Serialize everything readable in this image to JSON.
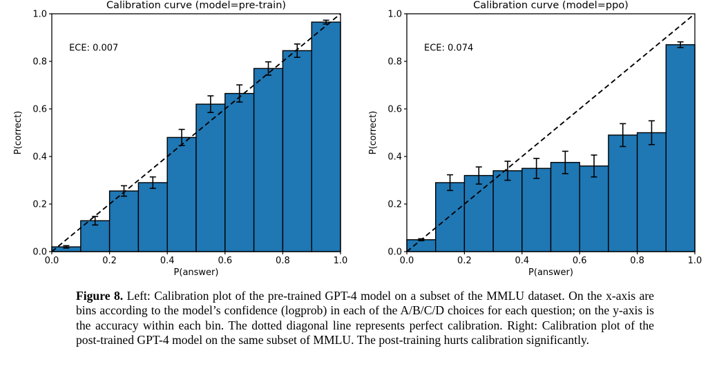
{
  "figure": {
    "caption_label": "Figure 8.",
    "caption_text": " Left: Calibration plot of the pre-trained GPT-4 model on a subset of the MMLU dataset. On the x-axis are bins according to the model’s confidence (logprob) in each of the A/B/C/D choices for each question; on the y-axis is the accuracy within each bin. The dotted diagonal line represents perfect calibration. Right: Calibration plot of the post-trained GPT-4 model on the same subset of MMLU. The post-training hurts calibration significantly."
  },
  "chart_data": [
    {
      "type": "bar",
      "title": "Calibration curve (model=pre-train)",
      "annotation": "ECE: 0.007",
      "xlabel": "P(answer)",
      "ylabel": "P(correct)",
      "xlim": [
        0.0,
        1.0
      ],
      "ylim": [
        0.0,
        1.0
      ],
      "grid": false,
      "diagonal_line": true,
      "xticks": {
        "values": [
          0.0,
          0.2,
          0.4,
          0.6,
          0.8,
          1.0
        ],
        "labels": [
          "0.0",
          "0.2",
          "0.4",
          "0.6",
          "0.8",
          "1.0"
        ]
      },
      "yticks": {
        "values": [
          0.0,
          0.2,
          0.4,
          0.6,
          0.8,
          1.0
        ],
        "labels": [
          "0.0",
          "0.2",
          "0.4",
          "0.6",
          "0.8",
          "1.0"
        ]
      },
      "bin_edges": [
        0.0,
        0.1,
        0.2,
        0.3,
        0.4,
        0.5,
        0.6,
        0.7,
        0.8,
        0.9,
        1.0
      ],
      "values": [
        0.02,
        0.13,
        0.255,
        0.29,
        0.48,
        0.62,
        0.665,
        0.77,
        0.845,
        0.965
      ],
      "errors": [
        0.005,
        0.018,
        0.022,
        0.024,
        0.034,
        0.035,
        0.036,
        0.028,
        0.028,
        0.008
      ],
      "bar_color": "#1f77b4",
      "edge_color": "#000000",
      "line_color": "#000000"
    },
    {
      "type": "bar",
      "title": "Calibration curve (model=ppo)",
      "annotation": "ECE: 0.074",
      "xlabel": "P(answer)",
      "ylabel": "P(correct)",
      "xlim": [
        0.0,
        1.0
      ],
      "ylim": [
        0.0,
        1.0
      ],
      "grid": false,
      "diagonal_line": true,
      "xticks": {
        "values": [
          0.0,
          0.2,
          0.4,
          0.6,
          0.8,
          1.0
        ],
        "labels": [
          "0.0",
          "0.2",
          "0.4",
          "0.6",
          "0.8",
          "1.0"
        ]
      },
      "yticks": {
        "values": [
          0.0,
          0.2,
          0.4,
          0.6,
          0.8,
          1.0
        ],
        "labels": [
          "0.0",
          "0.2",
          "0.4",
          "0.6",
          "0.8",
          "1.0"
        ]
      },
      "bin_edges": [
        0.0,
        0.1,
        0.2,
        0.3,
        0.4,
        0.5,
        0.6,
        0.7,
        0.8,
        0.9,
        1.0
      ],
      "values": [
        0.05,
        0.29,
        0.32,
        0.34,
        0.35,
        0.375,
        0.36,
        0.49,
        0.5,
        0.87
      ],
      "errors": [
        0.004,
        0.033,
        0.036,
        0.04,
        0.042,
        0.047,
        0.046,
        0.048,
        0.05,
        0.012
      ],
      "bar_color": "#1f77b4",
      "edge_color": "#000000",
      "line_color": "#000000"
    }
  ]
}
